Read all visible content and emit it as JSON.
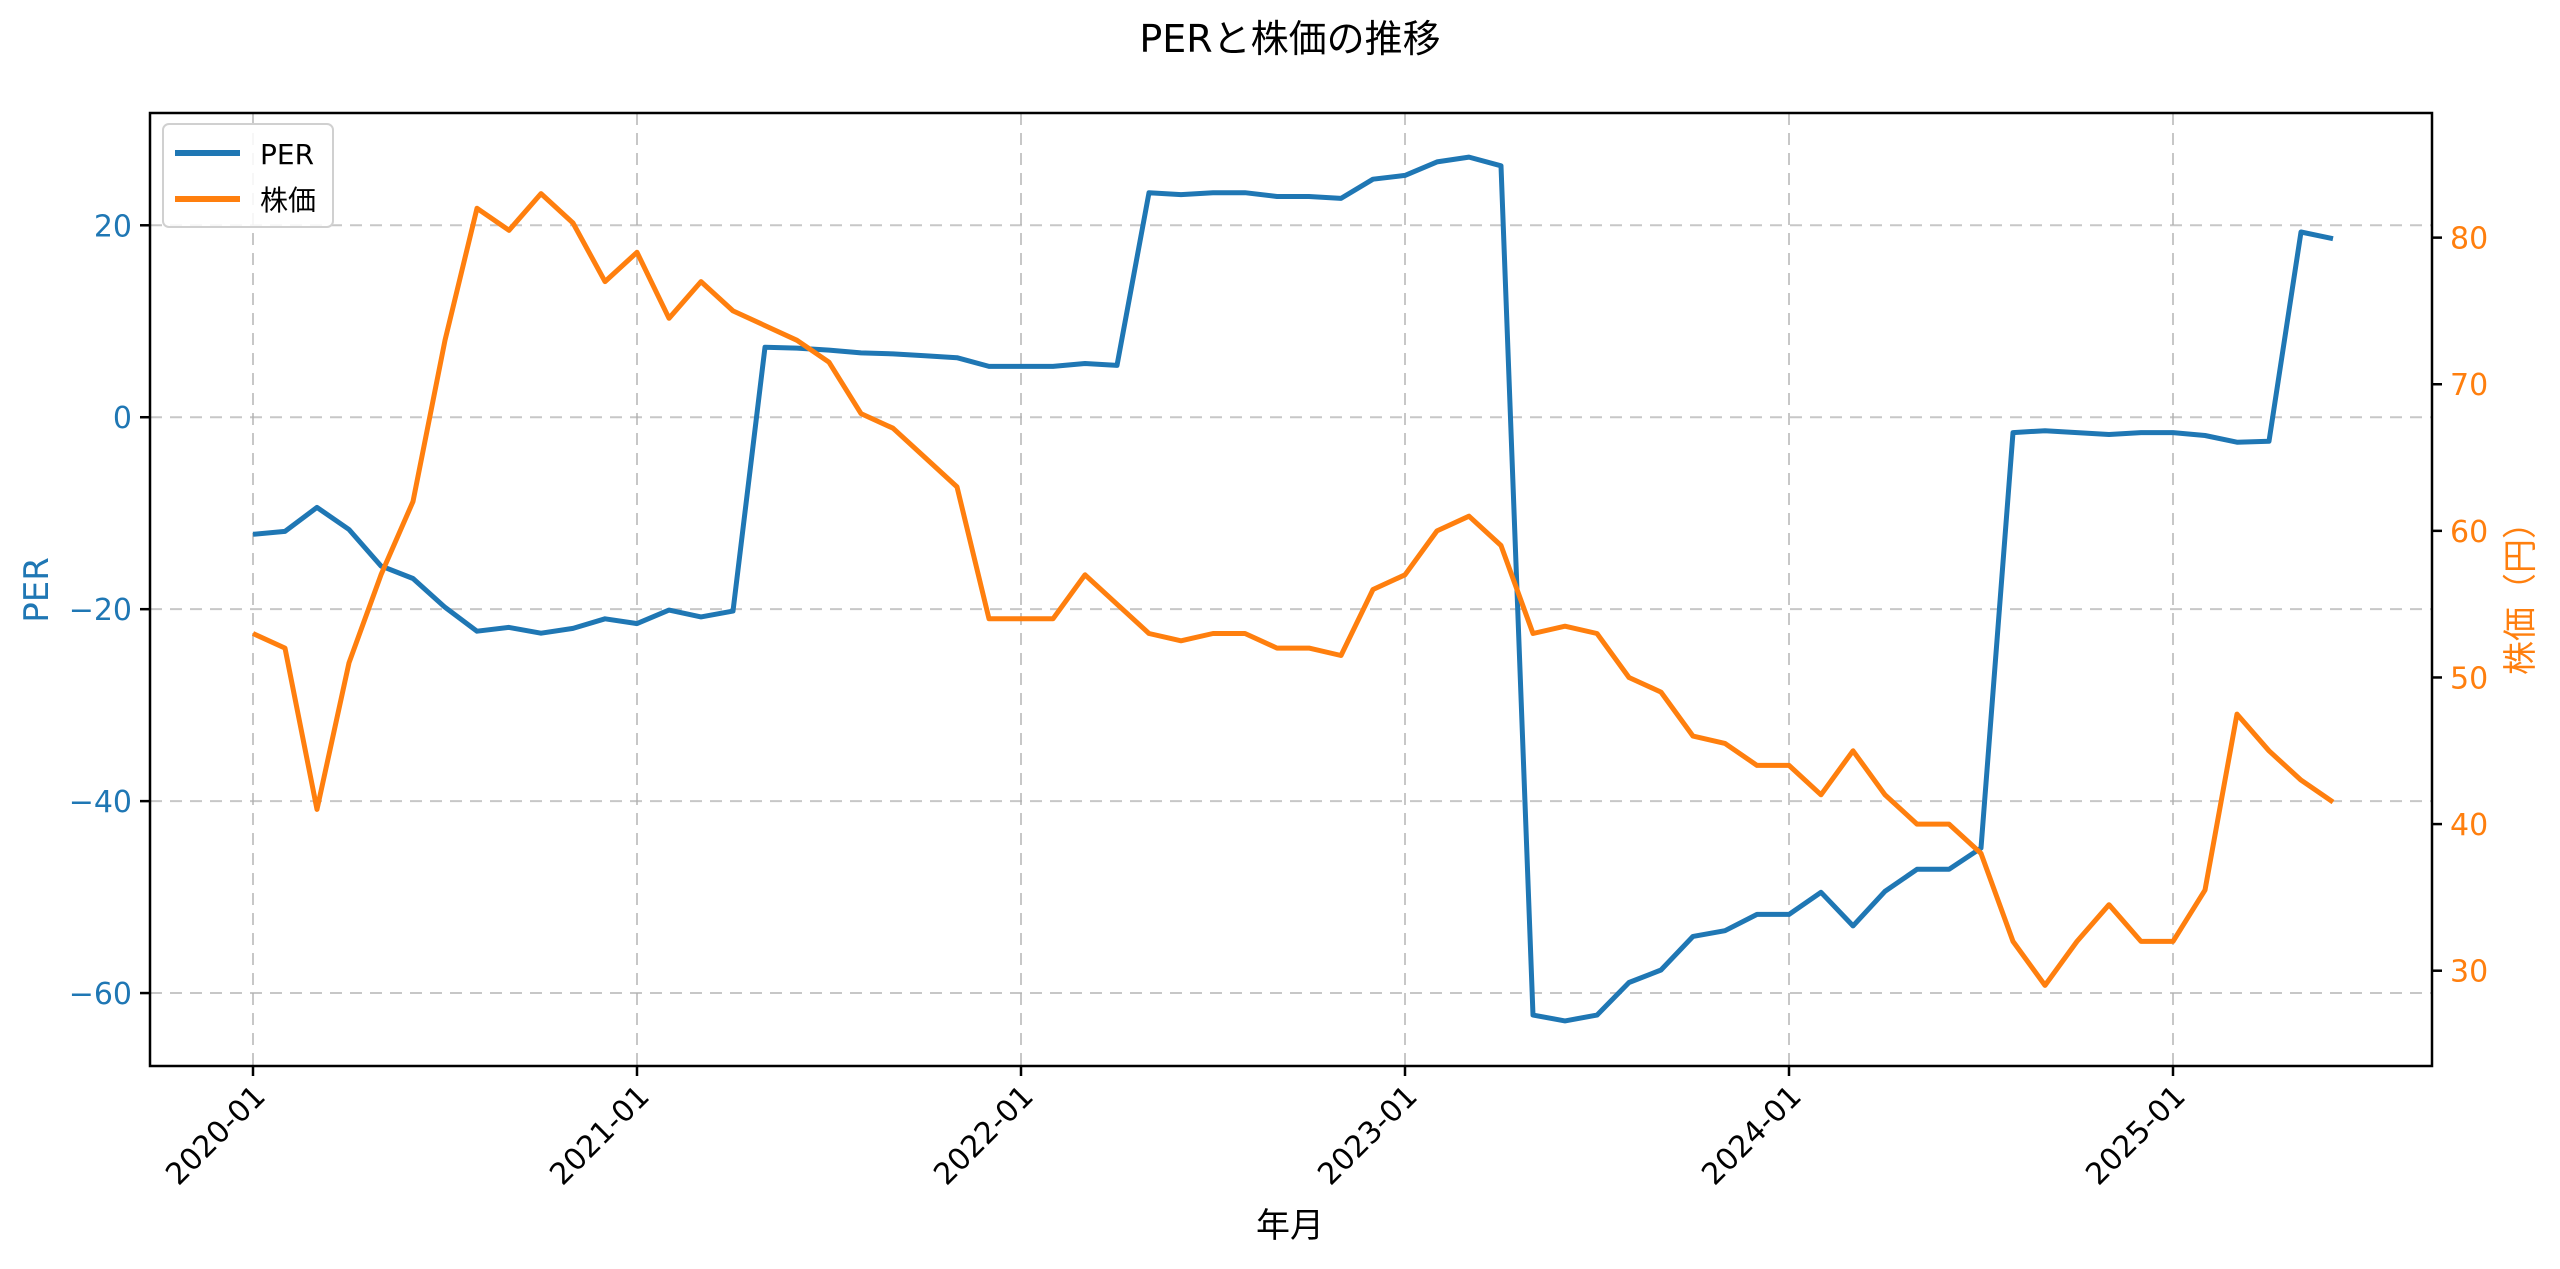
{
  "chart_data": {
    "type": "line",
    "title": "PERと株価の推移",
    "xlabel": "年月",
    "ylabel_left": "PER",
    "ylabel_right": "株価（円）",
    "x": [
      "2020-01",
      "2020-02",
      "2020-03",
      "2020-04",
      "2020-05",
      "2020-06",
      "2020-07",
      "2020-08",
      "2020-09",
      "2020-10",
      "2020-11",
      "2020-12",
      "2021-01",
      "2021-02",
      "2021-03",
      "2021-04",
      "2021-05",
      "2021-06",
      "2021-07",
      "2021-08",
      "2021-09",
      "2021-10",
      "2021-11",
      "2021-12",
      "2022-01",
      "2022-02",
      "2022-03",
      "2022-04",
      "2022-05",
      "2022-06",
      "2022-07",
      "2022-08",
      "2022-09",
      "2022-10",
      "2022-11",
      "2022-12",
      "2023-01",
      "2023-02",
      "2023-03",
      "2023-04",
      "2023-05",
      "2023-06",
      "2023-07",
      "2023-08",
      "2023-09",
      "2023-10",
      "2023-11",
      "2023-12",
      "2024-01",
      "2024-02",
      "2024-03",
      "2024-04",
      "2024-05",
      "2024-06",
      "2024-07",
      "2024-08",
      "2024-09",
      "2024-10",
      "2024-11",
      "2024-12",
      "2025-01",
      "2025-02",
      "2025-03",
      "2025-04",
      "2025-05",
      "2025-06"
    ],
    "series": [
      {
        "name": "PER",
        "axis": "left",
        "color": "#1f77b4",
        "values": [
          -12.2,
          -11.9,
          -9.4,
          -11.7,
          -15.5,
          -16.8,
          -19.8,
          -22.3,
          -21.9,
          -22.5,
          -22.0,
          -21.0,
          -21.5,
          -20.1,
          -20.8,
          -20.2,
          7.3,
          7.2,
          7.0,
          6.7,
          6.6,
          6.4,
          6.2,
          5.3,
          5.3,
          5.3,
          5.6,
          5.4,
          23.4,
          23.2,
          23.4,
          23.4,
          23.0,
          23.0,
          22.8,
          24.8,
          25.2,
          26.6,
          27.1,
          26.2,
          -62.3,
          -62.9,
          -62.3,
          -58.9,
          -57.6,
          -54.1,
          -53.5,
          -51.8,
          -51.8,
          -49.5,
          -53.0,
          -49.4,
          -47.1,
          -47.1,
          -44.9,
          -1.6,
          -1.4,
          -1.6,
          -1.8,
          -1.6,
          -1.6,
          -1.9,
          -2.6,
          -2.5,
          19.3,
          18.6
        ]
      },
      {
        "name": "株価",
        "axis": "right",
        "color": "#ff7f0e",
        "values": [
          53,
          52,
          41,
          51,
          57,
          62,
          73,
          82,
          80.5,
          83,
          81,
          77,
          79,
          74.5,
          77,
          75,
          74,
          73,
          71.5,
          68,
          67,
          65,
          63,
          54,
          54,
          54,
          57,
          55,
          53,
          52.5,
          53,
          53,
          52,
          52,
          51.5,
          56,
          57,
          60,
          61,
          59,
          53,
          53.5,
          53,
          50,
          49,
          46,
          45.5,
          44,
          44,
          42,
          45,
          42,
          40,
          40,
          38,
          32,
          29,
          32,
          34.5,
          32,
          32,
          35.5,
          47.5,
          45,
          43,
          41.5
        ]
      }
    ],
    "ylim_left": [
      -67.6,
      31.7
    ],
    "ylim_right": [
      23.5,
      88.5
    ],
    "yticks_left": [
      -60,
      -40,
      -20,
      0,
      20
    ],
    "yticks_left_labels": [
      "−60",
      "−40",
      "−20",
      "0",
      "20"
    ],
    "yticks_right": [
      30,
      40,
      50,
      60,
      70,
      80
    ],
    "yticks_right_labels": [
      "30",
      "40",
      "50",
      "60",
      "70",
      "80"
    ],
    "xticks": [
      "2020-01",
      "2021-01",
      "2022-01",
      "2023-01",
      "2024-01",
      "2025-01"
    ],
    "grid": true,
    "legend_position": "upper left"
  },
  "legend": {
    "items": [
      {
        "label": "PER",
        "color": "#1f77b4"
      },
      {
        "label": "株価",
        "color": "#ff7f0e"
      }
    ]
  }
}
